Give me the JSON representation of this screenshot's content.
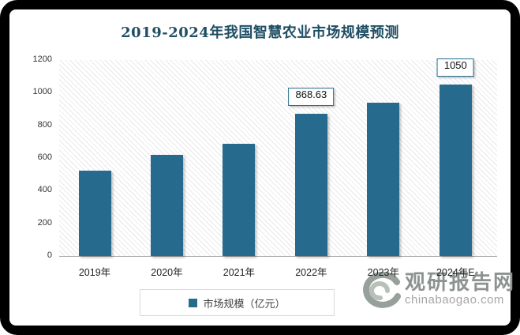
{
  "title": "2019-2024年我国智慧农业市场规模预测",
  "colors": {
    "bar": "#266b8e",
    "title_text": "#1f4e63",
    "axis_text": "#333333",
    "data_label_border": "#266b8e",
    "watermark_gray": "#8d9392"
  },
  "chart_data": {
    "type": "bar",
    "title": "2019-2024年我国智慧农业市场规模预测",
    "categories": [
      "2019年",
      "2020年",
      "2021年",
      "2022年",
      "2023年",
      "2024年E"
    ],
    "values": [
      525,
      620,
      685,
      868.63,
      940,
      1050
    ],
    "data_labels": [
      null,
      null,
      null,
      "868.63",
      null,
      "1050"
    ],
    "series_name": "市场规模（亿元）",
    "xlabel": "",
    "ylabel": "",
    "ylim": [
      0,
      1200
    ],
    "yticks": [
      0,
      200,
      400,
      600,
      800,
      1000,
      1200
    ],
    "grid": false,
    "plot_background": "diagonal-hatch",
    "legend_position": "bottom"
  },
  "legend": {
    "label": "市场规模（亿元）"
  },
  "watermark": {
    "site_name": "观研报告网",
    "site_url": "chinabaogao.com"
  }
}
